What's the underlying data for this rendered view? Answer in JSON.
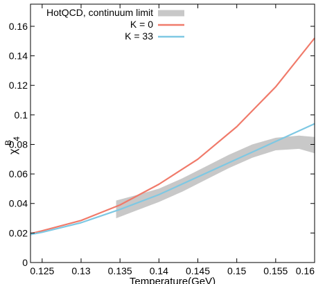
{
  "chart_data": {
    "type": "line",
    "xlabel": "Temperature(GeV)",
    "ylabel": "χ",
    "ylabel_sup": "B",
    "ylabel_sub": "4",
    "xlim": [
      0.1235,
      0.16
    ],
    "ylim": [
      0,
      0.175
    ],
    "grid": false,
    "legend_position": "top-left",
    "x_ticks": [
      {
        "value": 0.125,
        "label": "0.125"
      },
      {
        "value": 0.13,
        "label": "0.13"
      },
      {
        "value": 0.135,
        "label": "0.135"
      },
      {
        "value": 0.14,
        "label": "0.14"
      },
      {
        "value": 0.145,
        "label": "0.145"
      },
      {
        "value": 0.15,
        "label": "0.15"
      },
      {
        "value": 0.155,
        "label": "0.155"
      },
      {
        "value": 0.16,
        "label": "0.16"
      }
    ],
    "y_ticks": [
      {
        "value": 0,
        "label": "0"
      },
      {
        "value": 0.02,
        "label": "0.02"
      },
      {
        "value": 0.04,
        "label": "0.04"
      },
      {
        "value": 0.06,
        "label": "0.06"
      },
      {
        "value": 0.08,
        "label": "0.08"
      },
      {
        "value": 0.1,
        "label": "0.1"
      },
      {
        "value": 0.12,
        "label": "0.12"
      },
      {
        "value": 0.14,
        "label": "0.14"
      },
      {
        "value": 0.16,
        "label": "0.16"
      }
    ],
    "band": {
      "name": "HotQCD, continuum limit",
      "color": "#c8c8c8",
      "x": [
        0.1345,
        0.137,
        0.14,
        0.143,
        0.146,
        0.149,
        0.152,
        0.155,
        0.158,
        0.16
      ],
      "lower": [
        0.03,
        0.035,
        0.041,
        0.048,
        0.056,
        0.064,
        0.071,
        0.076,
        0.077,
        0.074
      ],
      "upper": [
        0.042,
        0.0455,
        0.05,
        0.057,
        0.065,
        0.073,
        0.08,
        0.0845,
        0.086,
        0.085
      ]
    },
    "series": [
      {
        "name": "K = 0",
        "color": "#f07a6a",
        "x": [
          0.1235,
          0.125,
          0.13,
          0.135,
          0.14,
          0.145,
          0.15,
          0.155,
          0.16
        ],
        "y": [
          0.0195,
          0.0215,
          0.0285,
          0.039,
          0.053,
          0.07,
          0.092,
          0.119,
          0.152
        ]
      },
      {
        "name": "K = 33",
        "color": "#7ec8e3",
        "x": [
          0.1235,
          0.125,
          0.13,
          0.135,
          0.14,
          0.145,
          0.15,
          0.155,
          0.16
        ],
        "y": [
          0.019,
          0.0205,
          0.027,
          0.036,
          0.046,
          0.058,
          0.07,
          0.082,
          0.094
        ]
      }
    ]
  }
}
